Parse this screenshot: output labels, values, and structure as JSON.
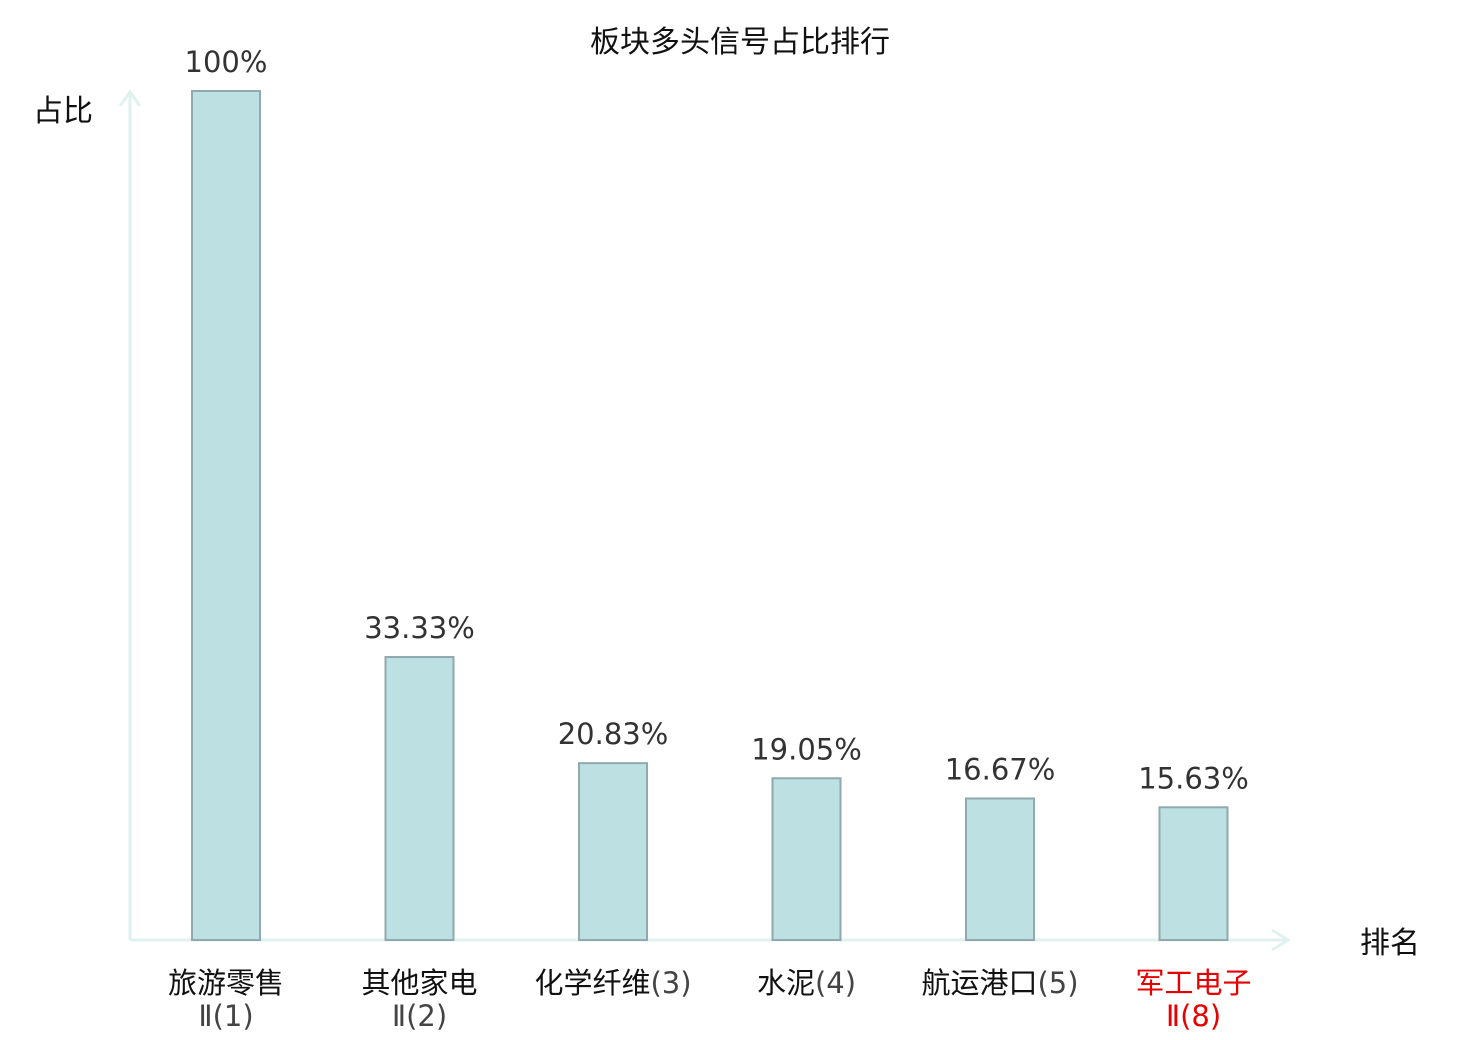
{
  "colors": {
    "bar_fill": "#bde0e3",
    "bar_stroke": "#8fa9ae",
    "axis": "#e0f2ef",
    "label_normal": "#111111",
    "label_num": "#444444",
    "label_highlight": "#e60000"
  },
  "chart_data": {
    "type": "bar",
    "title": "板块多头信号占比排行",
    "xlabel": "排名",
    "ylabel": "占比",
    "ylim": [
      0,
      100
    ],
    "grid": false,
    "categories": [
      {
        "name": "旅游零售",
        "line2": "Ⅱ",
        "rank": "(1)",
        "highlight": false
      },
      {
        "name": "其他家电",
        "line2": "Ⅱ",
        "rank": "(2)",
        "highlight": false
      },
      {
        "name": "化学纤维",
        "line2": "",
        "rank": "(3)",
        "highlight": false
      },
      {
        "name": "水泥",
        "line2": "",
        "rank": "(4)",
        "highlight": false
      },
      {
        "name": "航运港口",
        "line2": "",
        "rank": "(5)",
        "highlight": false
      },
      {
        "name": "军工电子",
        "line2": "Ⅱ",
        "rank": "(8)",
        "highlight": true
      }
    ],
    "values": [
      100,
      33.33,
      20.83,
      19.05,
      16.67,
      15.63
    ],
    "value_labels": [
      "100%",
      "33.33%",
      "20.83%",
      "19.05%",
      "16.67%",
      "15.63%"
    ]
  }
}
